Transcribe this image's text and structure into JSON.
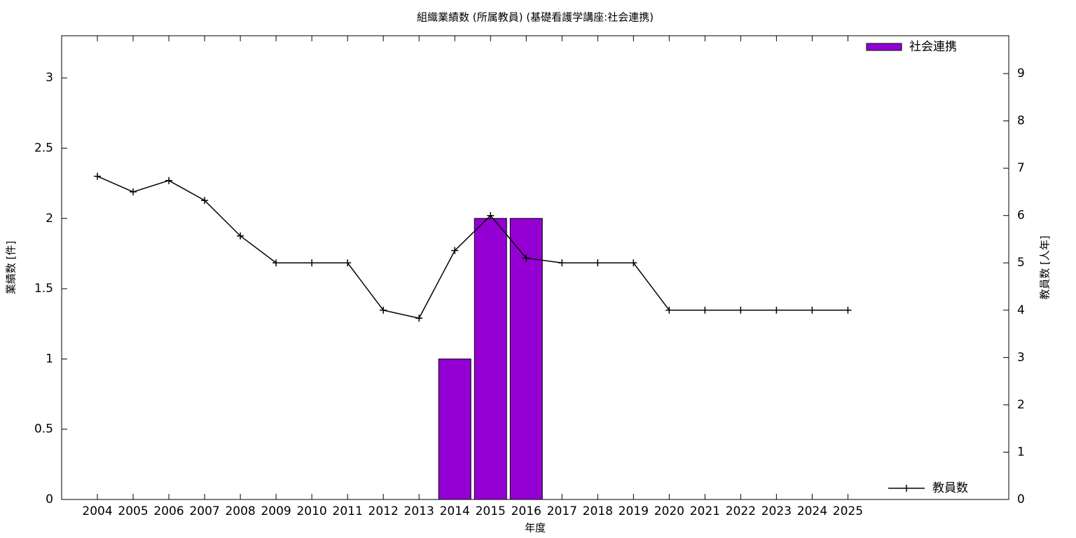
{
  "chart_data": {
    "type": "bar",
    "title": "組織業績数 (所属教員) (基礎看護学講座:社会連携)",
    "x_label": "年度",
    "y_label": "業績数 [件]",
    "y2_label": "教員数 [人年]",
    "categories": [
      "2004",
      "2005",
      "2006",
      "2007",
      "2008",
      "2009",
      "2010",
      "2011",
      "2012",
      "2013",
      "2014",
      "2015",
      "2016",
      "2017",
      "2018",
      "2019",
      "2020",
      "2021",
      "2022",
      "2023",
      "2024",
      "2025"
    ],
    "series": [
      {
        "name": "社会連携",
        "type": "bar",
        "color": "#9400d3",
        "values": [
          0,
          0,
          0,
          0,
          0,
          0,
          0,
          0,
          0,
          0,
          1,
          2,
          2,
          0,
          0,
          0,
          0,
          0,
          0,
          0,
          0,
          0
        ]
      },
      {
        "name": "教員数",
        "type": "line",
        "axis": "y2",
        "color": "#000000",
        "values": [
          6.83,
          6.5,
          6.74,
          6.32,
          5.57,
          5,
          5,
          5,
          4,
          3.83,
          5.26,
          6,
          5.1,
          5,
          5,
          5,
          4,
          4,
          4,
          4,
          4,
          4
        ]
      }
    ],
    "ylim": [
      0,
      3.3
    ],
    "yticks": [
      0,
      0.5,
      1,
      1.5,
      2,
      2.5,
      3
    ],
    "y2lim": [
      0,
      9.8
    ],
    "y2ticks": [
      0,
      1,
      2,
      3,
      4,
      5,
      6,
      7,
      8,
      9
    ]
  }
}
